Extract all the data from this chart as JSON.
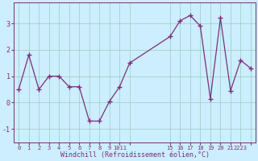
{
  "x": [
    0,
    1,
    2,
    3,
    4,
    5,
    6,
    7,
    8,
    9,
    10,
    11,
    15,
    16,
    17,
    18,
    19,
    20,
    21,
    22,
    23
  ],
  "y": [
    0.5,
    1.8,
    0.5,
    1.0,
    1.0,
    0.6,
    0.6,
    -0.7,
    -0.7,
    0.05,
    0.6,
    1.5,
    2.5,
    3.1,
    3.3,
    2.9,
    0.15,
    3.2,
    0.45,
    1.6,
    1.3
  ],
  "line_color": "#7b2f7b",
  "marker": "+",
  "marker_size": 4,
  "marker_linewidth": 1.0,
  "line_width": 0.9,
  "bg_color": "#cceeff",
  "grid_color": "#99ccbb",
  "xlabel": "Windchill (Refroidissement éolien,°C)",
  "xlabel_color": "#7b2f7b",
  "tick_color": "#7b2f7b",
  "xlim": [
    -0.5,
    23.5
  ],
  "ylim": [
    -1.5,
    3.8
  ],
  "yticks": [
    -1,
    0,
    1,
    2,
    3
  ],
  "xtick_positions": [
    0,
    1,
    2,
    3,
    4,
    5,
    6,
    7,
    8,
    9,
    10,
    11,
    15,
    16,
    17,
    18,
    19,
    20,
    21,
    22,
    23
  ],
  "xtick_labels": [
    "0",
    "1",
    "2",
    "3",
    "4",
    "5",
    "6",
    "7",
    "8",
    "9",
    "1011",
    "",
    "15",
    "16",
    "17",
    "18",
    "19",
    "20",
    "21",
    "2223",
    ""
  ],
  "spine_color": "#7b2f7b",
  "font_family": "monospace",
  "tick_fontsize": 5,
  "xlabel_fontsize": 6
}
